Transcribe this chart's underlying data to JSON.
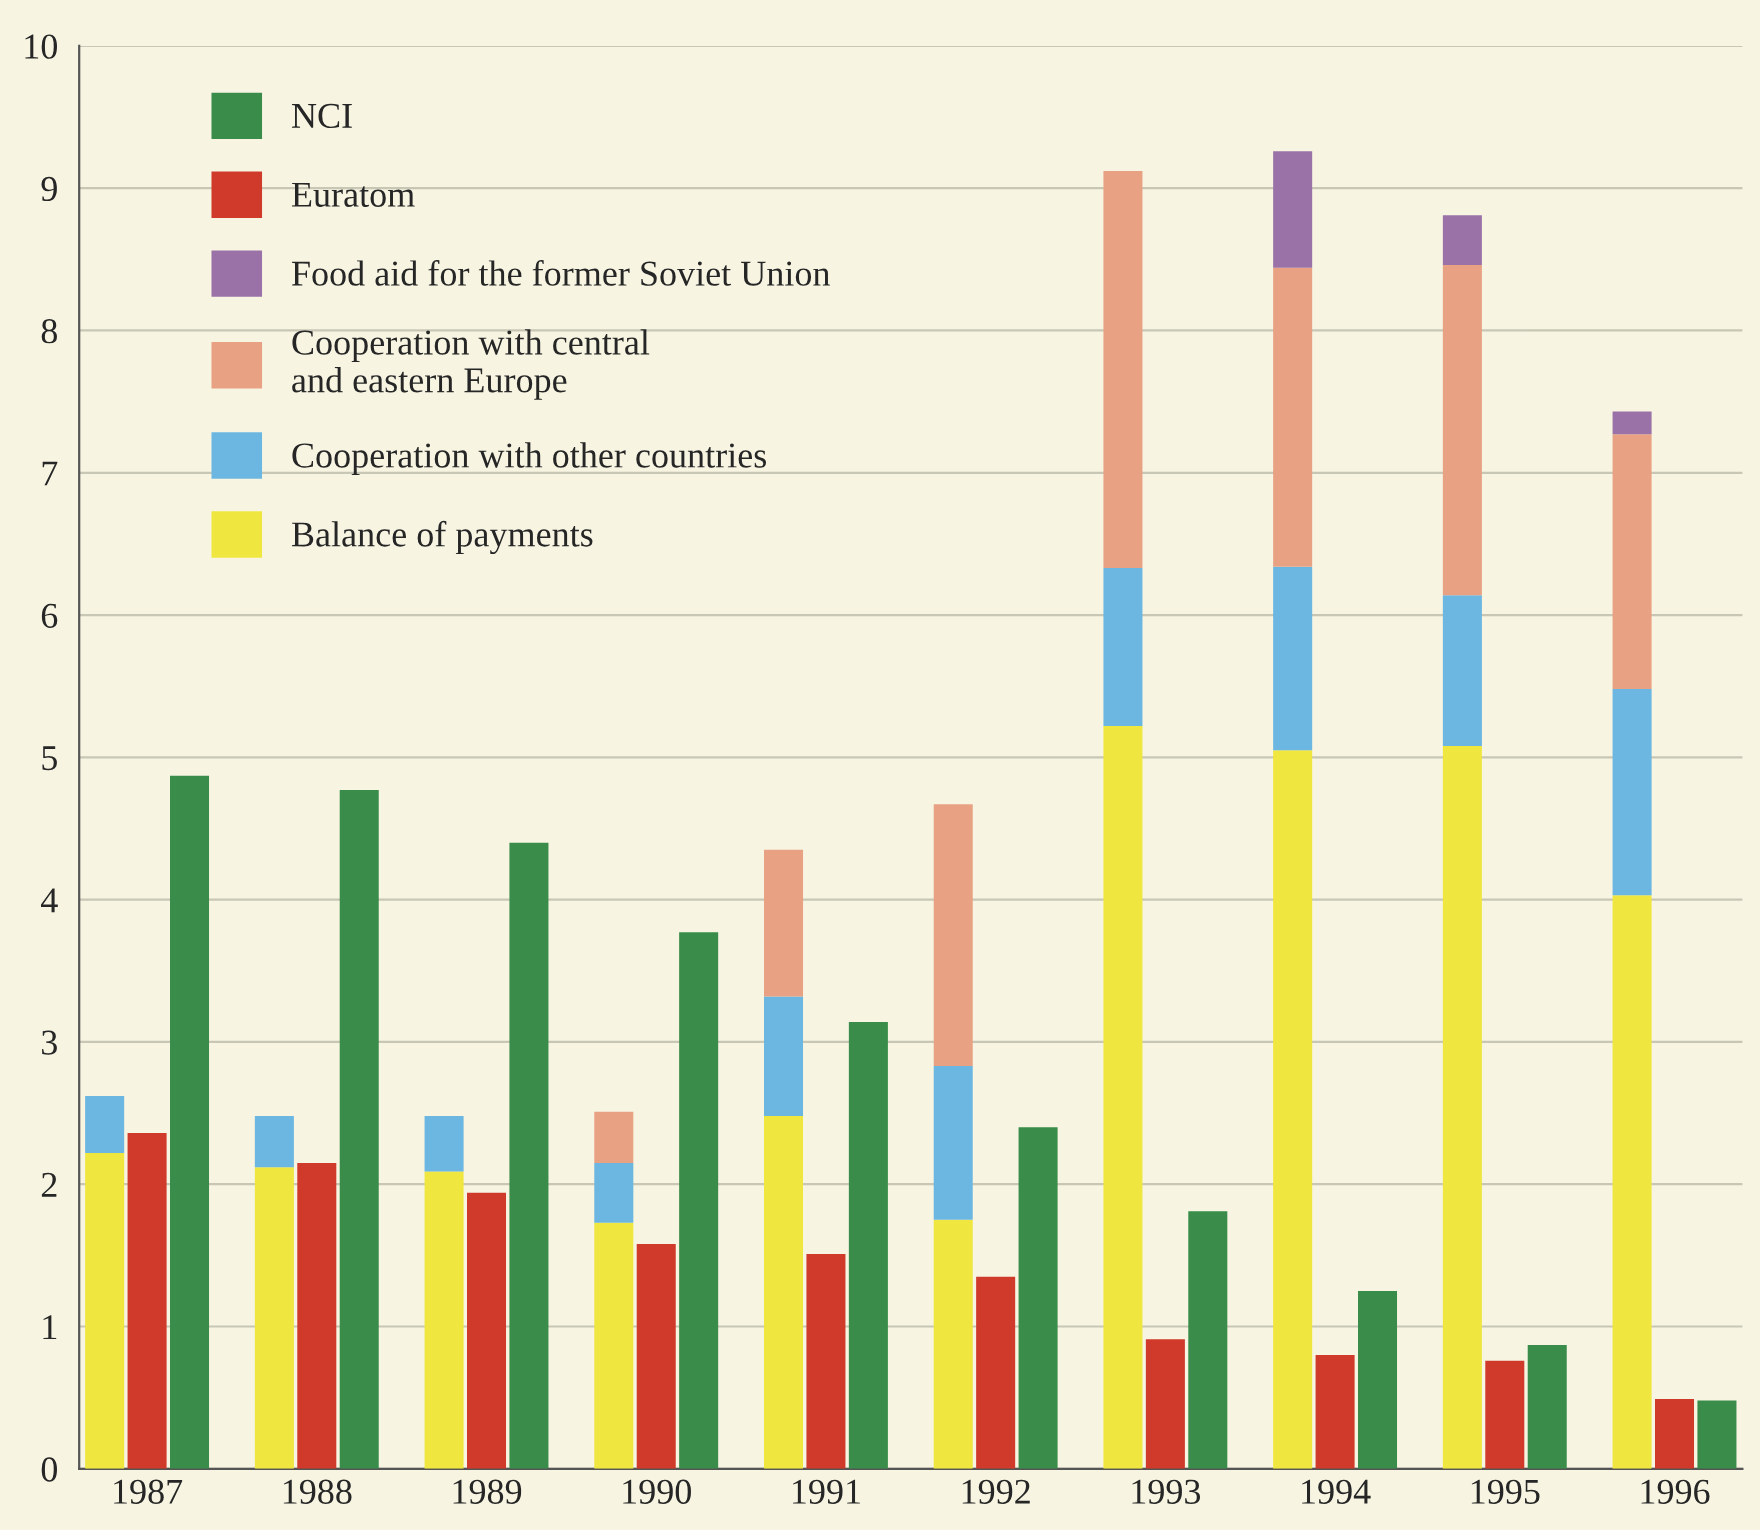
{
  "chart_data": {
    "type": "bar",
    "stacked": true,
    "categories": [
      null,
      "1987",
      null,
      null,
      null,
      "1988",
      null,
      null,
      null,
      "1989",
      null,
      null,
      null,
      "1990",
      null,
      null,
      null,
      "1991",
      null,
      null,
      null,
      "1992",
      null,
      null,
      null,
      "1993",
      null,
      null,
      null,
      "1994",
      null,
      null,
      null,
      "1995",
      null,
      null,
      null,
      "1996",
      null
    ],
    "series": [
      {
        "name": "Balance of payments",
        "color": "#f0e640",
        "values": [
          2.22,
          null,
          null,
          null,
          2.12,
          null,
          null,
          null,
          2.09,
          null,
          null,
          null,
          1.73,
          null,
          null,
          null,
          2.48,
          null,
          null,
          null,
          1.75,
          null,
          null,
          null,
          5.22,
          null,
          null,
          null,
          5.05,
          null,
          null,
          null,
          5.08,
          null,
          null,
          null,
          4.03,
          null,
          null
        ]
      },
      {
        "name": "Cooperation with other countries",
        "color": "#6cb6e2",
        "values": [
          0.4,
          null,
          null,
          null,
          0.36,
          null,
          null,
          null,
          0.39,
          null,
          null,
          null,
          0.42,
          null,
          null,
          null,
          0.84,
          null,
          null,
          null,
          1.08,
          null,
          null,
          null,
          1.11,
          null,
          null,
          null,
          1.29,
          null,
          null,
          null,
          1.06,
          null,
          null,
          null,
          1.45,
          null,
          null
        ]
      },
      {
        "name": "Cooperation with central\nand eastern Europe",
        "color": "#e8a283",
        "values": [
          null,
          null,
          null,
          null,
          null,
          null,
          null,
          null,
          null,
          null,
          null,
          null,
          0.36,
          null,
          null,
          null,
          1.03,
          null,
          null,
          null,
          1.84,
          null,
          null,
          null,
          2.79,
          null,
          null,
          null,
          2.1,
          null,
          null,
          null,
          2.32,
          null,
          null,
          null,
          1.79,
          null,
          null
        ]
      },
      {
        "name": "Food aid for the former Soviet Union",
        "color": "#9a72a8",
        "values": [
          null,
          null,
          null,
          null,
          null,
          null,
          null,
          null,
          null,
          null,
          null,
          null,
          null,
          null,
          null,
          null,
          null,
          null,
          null,
          null,
          null,
          null,
          null,
          null,
          null,
          null,
          null,
          null,
          0.82,
          null,
          null,
          null,
          0.35,
          null,
          null,
          null,
          0.16,
          null,
          null
        ]
      },
      {
        "name": "Euratom",
        "color": "#d03a2a",
        "values": [
          null,
          2.36,
          null,
          null,
          null,
          2.15,
          null,
          null,
          null,
          1.94,
          null,
          null,
          null,
          1.58,
          null,
          null,
          null,
          1.51,
          null,
          null,
          null,
          1.35,
          null,
          null,
          null,
          0.91,
          null,
          null,
          null,
          0.8,
          null,
          null,
          null,
          0.76,
          null,
          null,
          null,
          0.49,
          null
        ]
      },
      {
        "name": "NCI",
        "color": "#3a8c4a",
        "values": [
          null,
          null,
          4.87,
          null,
          null,
          null,
          4.77,
          null,
          null,
          null,
          4.4,
          null,
          null,
          null,
          3.77,
          null,
          null,
          null,
          3.14,
          null,
          null,
          null,
          2.4,
          null,
          null,
          null,
          1.81,
          null,
          null,
          null,
          1.25,
          null,
          null,
          null,
          0.87,
          null,
          null,
          null,
          0.48
        ]
      }
    ],
    "ylim": [
      0,
      10
    ],
    "yticks": [
      0,
      1,
      2,
      3,
      4,
      5,
      6,
      7,
      8,
      9,
      10
    ],
    "grid": "y",
    "legend": "top left"
  }
}
